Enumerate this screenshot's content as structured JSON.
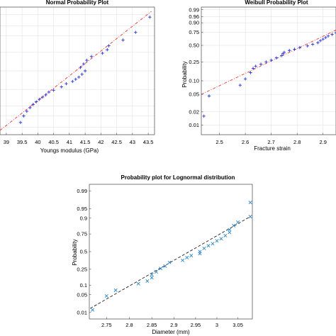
{
  "chart_data": [
    {
      "type": "scatter",
      "title": "Normal Probability Plot",
      "xlabel": "Youngs modulus (GPa)",
      "ylabel": "",
      "xlim": [
        38.8,
        43.7
      ],
      "xticks": [
        39,
        39.5,
        40,
        40.5,
        41,
        41.5,
        42,
        42.5,
        43,
        43.5
      ],
      "xtick_labels": [
        "39",
        "39.5",
        "40",
        "40.5",
        "41",
        "41.5",
        "42",
        "42.5",
        "43",
        "43.5"
      ],
      "yticks": [],
      "yscale": "probability",
      "grid": true,
      "marker": "+",
      "fit_line": {
        "style": "dash-dot",
        "color": "#e8332e",
        "from": [
          38.8,
          0.015
        ],
        "to": [
          43.6,
          0.985
        ]
      },
      "series": [
        {
          "marker_color": "#2b35d9",
          "points": [
            [
              39.45,
              0.03
            ],
            [
              39.55,
              0.05
            ],
            [
              39.65,
              0.07
            ],
            [
              39.75,
              0.09
            ],
            [
              39.85,
              0.11
            ],
            [
              39.95,
              0.13
            ],
            [
              40.05,
              0.15
            ],
            [
              40.15,
              0.17
            ],
            [
              40.25,
              0.19
            ],
            [
              40.35,
              0.22
            ],
            [
              40.5,
              0.24
            ],
            [
              40.75,
              0.28
            ],
            [
              40.9,
              0.32
            ],
            [
              41.1,
              0.35
            ],
            [
              41.2,
              0.38
            ],
            [
              41.3,
              0.41
            ],
            [
              41.4,
              0.45
            ],
            [
              41.5,
              0.5
            ],
            [
              41.35,
              0.55
            ],
            [
              41.45,
              0.6
            ],
            [
              41.55,
              0.65
            ],
            [
              41.7,
              0.7
            ],
            [
              42.05,
              0.74
            ],
            [
              42.2,
              0.78
            ],
            [
              42.25,
              0.82
            ],
            [
              42.7,
              0.87
            ],
            [
              43.1,
              0.92
            ],
            [
              43.55,
              0.975
            ]
          ]
        }
      ]
    },
    {
      "type": "scatter",
      "title": "Weibull Probability Plot",
      "xlabel": "Fracture strain",
      "ylabel": "Probability",
      "xlim": [
        2.43,
        2.95
      ],
      "xticks": [
        2.5,
        2.6,
        2.7,
        2.8,
        2.9
      ],
      "xtick_labels": [
        "2.5",
        "2.6",
        "2.7",
        "2.8",
        "2.9"
      ],
      "yscale": "weibull",
      "yticks": [
        0.01,
        0.02,
        0.05,
        0.1,
        0.25,
        0.5,
        0.75,
        0.9,
        0.96,
        0.99
      ],
      "ytick_labels": [
        "0.01",
        "0.02",
        "0.05",
        "0.10",
        "0.25",
        "0.50",
        "0.75",
        "0.90",
        "0.96",
        "0.99"
      ],
      "ylim": [
        0.006,
        0.995
      ],
      "grid": true,
      "marker": "+",
      "fit_line": {
        "style": "dash-dot",
        "color": "#e8332e",
        "from": [
          2.43,
          0.05
        ],
        "to": [
          2.95,
          0.79
        ]
      },
      "series": [
        {
          "marker_color": "#2b35d9",
          "points": [
            [
              2.44,
              0.016
            ],
            [
              2.46,
              0.046
            ],
            [
              2.58,
              0.08
            ],
            [
              2.6,
              0.11
            ],
            [
              2.62,
              0.15
            ],
            [
              2.63,
              0.185
            ],
            [
              2.64,
              0.205
            ],
            [
              2.66,
              0.225
            ],
            [
              2.68,
              0.25
            ],
            [
              2.7,
              0.27
            ],
            [
              2.72,
              0.3
            ],
            [
              2.74,
              0.33
            ],
            [
              2.745,
              0.36
            ],
            [
              2.75,
              0.38
            ],
            [
              2.77,
              0.41
            ],
            [
              2.79,
              0.43
            ],
            [
              2.81,
              0.46
            ],
            [
              2.84,
              0.49
            ],
            [
              2.86,
              0.52
            ],
            [
              2.88,
              0.55
            ],
            [
              2.89,
              0.59
            ],
            [
              2.9,
              0.62
            ],
            [
              2.91,
              0.65
            ],
            [
              2.92,
              0.68
            ],
            [
              2.935,
              0.71
            ],
            [
              2.95,
              0.74
            ]
          ]
        }
      ]
    },
    {
      "type": "scatter",
      "title": "Probability plot for Lognormal distribution",
      "xlabel": "Diameter (mm)",
      "ylabel": "Probability",
      "xlim": [
        2.713,
        3.085
      ],
      "xscale": "log",
      "xticks": [
        2.75,
        2.8,
        2.85,
        2.9,
        2.95,
        3,
        3.05
      ],
      "xtick_labels": [
        "2.75",
        "2.8",
        "2.85",
        "2.9",
        "2.95",
        "3",
        "3.05"
      ],
      "yscale": "probability",
      "yticks": [
        0.01,
        0.05,
        0.1,
        0.25,
        0.5,
        0.75,
        0.9,
        0.95,
        0.99
      ],
      "ytick_labels": [
        "0.01",
        "0.05",
        "0.1",
        "0.25",
        "0.5",
        "0.75",
        "0.9",
        "0.95",
        "0.99"
      ],
      "ylim": [
        0.005,
        0.995
      ],
      "grid": false,
      "marker": "x",
      "fit_line": {
        "style": "dashed",
        "color": "#222222",
        "from": [
          2.715,
          0.015
        ],
        "to": [
          3.08,
          0.91
        ]
      },
      "series": [
        {
          "marker_color": "#2b86c8",
          "points": [
            [
              2.72,
              0.013
            ],
            [
              2.75,
              0.045
            ],
            [
              2.77,
              0.07
            ],
            [
              2.82,
              0.11
            ],
            [
              2.84,
              0.13
            ],
            [
              2.85,
              0.16
            ],
            [
              2.85,
              0.19
            ],
            [
              2.86,
              0.22
            ],
            [
              2.87,
              0.26
            ],
            [
              2.88,
              0.29
            ],
            [
              2.89,
              0.34
            ],
            [
              2.92,
              0.37
            ],
            [
              2.93,
              0.41
            ],
            [
              2.94,
              0.44
            ],
            [
              2.96,
              0.47
            ],
            [
              2.96,
              0.5
            ],
            [
              2.97,
              0.55
            ],
            [
              2.98,
              0.59
            ],
            [
              2.99,
              0.62
            ],
            [
              3.0,
              0.66
            ],
            [
              3.01,
              0.69
            ],
            [
              3.02,
              0.73
            ],
            [
              3.03,
              0.77
            ],
            [
              3.03,
              0.8
            ],
            [
              3.04,
              0.84
            ],
            [
              3.05,
              0.87
            ],
            [
              3.08,
              0.91
            ],
            [
              3.08,
              0.97
            ]
          ]
        }
      ]
    }
  ]
}
